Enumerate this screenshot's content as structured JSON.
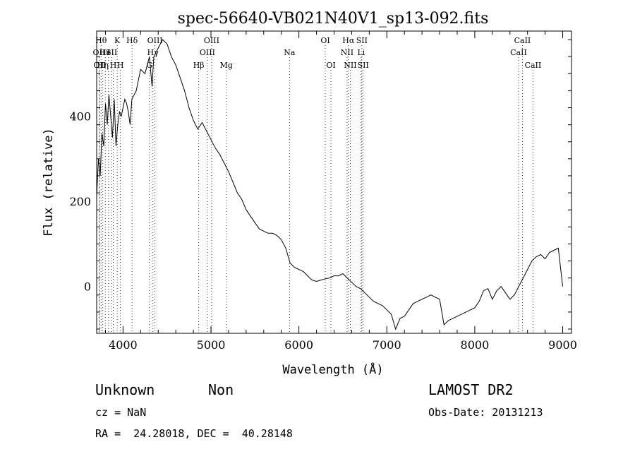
{
  "chart_data": {
    "type": "line",
    "title": "spec-56640-VB021N40V1_sp13-092.fits",
    "xlabel": "Wavelength (Å)",
    "ylabel": "Flux (relative)",
    "xlim": [
      3700,
      9100
    ],
    "ylim": [
      -110,
      600
    ],
    "xticks": [
      4000,
      5000,
      6000,
      7000,
      8000,
      9000
    ],
    "yticks": [
      0,
      200,
      400
    ],
    "grid": false,
    "series": [
      {
        "x": [
          3700,
          3720,
          3740,
          3760,
          3780,
          3800,
          3820,
          3840,
          3860,
          3880,
          3900,
          3920,
          3940,
          3960,
          3980,
          4000,
          4020,
          4040,
          4060,
          4080,
          4100,
          4150,
          4200,
          4250,
          4300,
          4330,
          4350,
          4400,
          4450,
          4500,
          4550,
          4600,
          4650,
          4700,
          4750,
          4800,
          4850,
          4900,
          4950,
          5000,
          5050,
          5100,
          5150,
          5200,
          5250,
          5300,
          5350,
          5400,
          5450,
          5500,
          5550,
          5600,
          5650,
          5700,
          5750,
          5800,
          5850,
          5900,
          5950,
          6000,
          6050,
          6100,
          6150,
          6200,
          6250,
          6300,
          6350,
          6400,
          6450,
          6500,
          6550,
          6600,
          6650,
          6700,
          6750,
          6800,
          6850,
          6900,
          6950,
          7000,
          7050,
          7100,
          7150,
          7200,
          7250,
          7300,
          7350,
          7400,
          7450,
          7500,
          7550,
          7600,
          7650,
          7700,
          7750,
          7800,
          7850,
          7900,
          7950,
          8000,
          8050,
          8100,
          8150,
          8200,
          8250,
          8300,
          8350,
          8400,
          8450,
          8500,
          8550,
          8600,
          8650,
          8700,
          8750,
          8800,
          8850,
          8900,
          8950,
          9000
        ],
        "y": [
          210,
          300,
          260,
          360,
          330,
          430,
          380,
          450,
          400,
          350,
          440,
          330,
          380,
          410,
          400,
          420,
          440,
          430,
          410,
          380,
          440,
          460,
          510,
          500,
          540,
          470,
          540,
          560,
          580,
          570,
          540,
          520,
          490,
          460,
          420,
          390,
          370,
          385,
          365,
          345,
          325,
          310,
          290,
          270,
          245,
          220,
          205,
          180,
          165,
          150,
          135,
          130,
          125,
          125,
          120,
          110,
          90,
          55,
          45,
          40,
          35,
          25,
          15,
          12,
          15,
          18,
          20,
          25,
          25,
          30,
          20,
          10,
          0,
          -5,
          -15,
          -25,
          -35,
          -40,
          -45,
          -55,
          -65,
          -100,
          -75,
          -70,
          -55,
          -40,
          -35,
          -30,
          -25,
          -20,
          -25,
          -30,
          -90,
          -80,
          -75,
          -70,
          -65,
          -60,
          -55,
          -50,
          -35,
          -10,
          -5,
          -30,
          -10,
          0,
          -15,
          -30,
          -20,
          0,
          20,
          40,
          60,
          70,
          75,
          65,
          80,
          85,
          90,
          0
        ]
      }
    ],
    "line_markers": [
      {
        "x": 3727,
        "label": "OII",
        "row": 1
      },
      {
        "x": 3734,
        "label": "OII",
        "row": 2
      },
      {
        "x": 3750,
        "label": "Hθ",
        "row": 0
      },
      {
        "x": 3770,
        "label": "Hη",
        "row": 2
      },
      {
        "x": 3798,
        "label": "He",
        "row": 1
      },
      {
        "x": 3834,
        "label": "I",
        "row": 1
      },
      {
        "x": 3869,
        "label": "SII",
        "row": 1
      },
      {
        "x": 3889,
        "label": "H",
        "row": 2
      },
      {
        "x": 3934,
        "label": "K",
        "row": 0
      },
      {
        "x": 3970,
        "label": "H",
        "row": 2
      },
      {
        "x": 4102,
        "label": "Hδ",
        "row": 0
      },
      {
        "x": 4300,
        "label": "G",
        "row": 2
      },
      {
        "x": 4340,
        "label": "Hγ",
        "row": 1
      },
      {
        "x": 4363,
        "label": "OIII",
        "row": 0
      },
      {
        "x": 4861,
        "label": "Hβ",
        "row": 2
      },
      {
        "x": 4959,
        "label": "OIII",
        "row": 1
      },
      {
        "x": 5007,
        "label": "OIII",
        "row": 0
      },
      {
        "x": 5175,
        "label": "Mg",
        "row": 2
      },
      {
        "x": 5893,
        "label": "Na",
        "row": 1
      },
      {
        "x": 6300,
        "label": "OI",
        "row": 0
      },
      {
        "x": 6364,
        "label": "OI",
        "row": 2
      },
      {
        "x": 6548,
        "label": "NII",
        "row": 1
      },
      {
        "x": 6563,
        "label": "Hα",
        "row": 0
      },
      {
        "x": 6584,
        "label": "NII",
        "row": 2
      },
      {
        "x": 6708,
        "label": "Li",
        "row": 1
      },
      {
        "x": 6716,
        "label": "SII",
        "row": 0
      },
      {
        "x": 6731,
        "label": "SII",
        "row": 2
      },
      {
        "x": 8498,
        "label": "CaII",
        "row": 1
      },
      {
        "x": 8542,
        "label": "CaII",
        "row": 0
      },
      {
        "x": 8662,
        "label": "CaII",
        "row": 2
      }
    ]
  },
  "info": {
    "class": "Unknown",
    "subclass": "Non",
    "survey": "LAMOST DR2",
    "cz": "cz = NaN",
    "obs_date": "Obs-Date: 20131213",
    "coords": "RA =  24.28018, DEC =  40.28148"
  }
}
